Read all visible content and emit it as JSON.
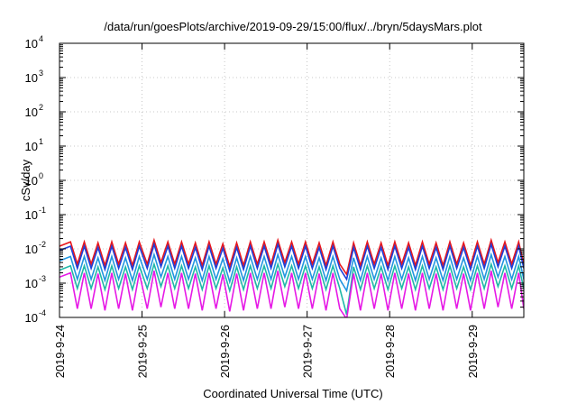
{
  "chart_data": {
    "type": "line",
    "title": "/data/run/goesPlots/archive/2019-09-29/15:00/flux/../bryn/5daysMars.plot",
    "xlabel": "Coordinated Universal Time (UTC)",
    "ylabel": "cSv/day",
    "yscale": "log",
    "ylim": [
      0.0001,
      10000
    ],
    "xlim": [
      "2019-09-24 00:00",
      "2019-09-29 15:00"
    ],
    "x_ticks": [
      "2019-9-24",
      "2019-9-25",
      "2019-9-26",
      "2019-9-27",
      "2019-9-28",
      "2019-9-29"
    ],
    "y_ticks": [
      {
        "value": 0.0001,
        "base": "10",
        "exp": "-4"
      },
      {
        "value": 0.001,
        "base": "10",
        "exp": "-3"
      },
      {
        "value": 0.01,
        "base": "10",
        "exp": "-2"
      },
      {
        "value": 0.1,
        "base": "10",
        "exp": "-1"
      },
      {
        "value": 1,
        "base": "10",
        "exp": "0"
      },
      {
        "value": 10,
        "base": "10",
        "exp": "1"
      },
      {
        "value": 100,
        "base": "10",
        "exp": "2"
      },
      {
        "value": 1000,
        "base": "10",
        "exp": "3"
      },
      {
        "value": 10000,
        "base": "10",
        "exp": "4"
      }
    ],
    "grid": true,
    "legend": "none",
    "time_hours": [
      0,
      3.2,
      5.2,
      7.2,
      9.2,
      11.2,
      13.2,
      15.2,
      17.2,
      19.2,
      21.2,
      23.2,
      25.5,
      27.5,
      29.5,
      31.5,
      33.5,
      35.5,
      37.5,
      39.5,
      41.5,
      43.5,
      45.5,
      47.5,
      49.5,
      51.5,
      53.5,
      55.5,
      57.5,
      59.5,
      61.5,
      63.5,
      65.5,
      67.5,
      69.5,
      71.5,
      73.5,
      75.5,
      77.5,
      79.5,
      81.5,
      83.5,
      85.5,
      87.5,
      89.5,
      91.5,
      93.5,
      95.5,
      97.5,
      99.5,
      101.5,
      103.5,
      105.5,
      107.5,
      109.5,
      111.5,
      113.5,
      115.5,
      117.5,
      119.5,
      121.5,
      123.5,
      125.5,
      127.5,
      129.5,
      131.5,
      133.5,
      135
    ],
    "series": [
      {
        "color": "#e8161c",
        "values": [
          0.012,
          0.016,
          0.0036,
          0.016,
          0.0036,
          0.015,
          0.0033,
          0.016,
          0.0036,
          0.015,
          0.0033,
          0.016,
          0.0036,
          0.018,
          0.004,
          0.016,
          0.0036,
          0.016,
          0.0036,
          0.015,
          0.0033,
          0.016,
          0.0036,
          0.014,
          0.0031,
          0.015,
          0.0033,
          0.016,
          0.0036,
          0.016,
          0.0036,
          0.018,
          0.004,
          0.016,
          0.0036,
          0.016,
          0.0036,
          0.015,
          0.0033,
          0.016,
          0.0036,
          0.0018,
          0.015,
          0.0033,
          0.016,
          0.0036,
          0.015,
          0.0033,
          0.016,
          0.0036,
          0.015,
          0.0033,
          0.016,
          0.0036,
          0.015,
          0.0033,
          0.016,
          0.0036,
          0.015,
          0.0033,
          0.016,
          0.0036,
          0.018,
          0.004,
          0.016,
          0.0036,
          0.016,
          0.0036
        ]
      },
      {
        "color": "#1f3fd9",
        "values": [
          0.009,
          0.012,
          0.0027,
          0.012,
          0.0027,
          0.011,
          0.0025,
          0.012,
          0.0027,
          0.011,
          0.0025,
          0.012,
          0.0027,
          0.0135,
          0.003,
          0.012,
          0.0027,
          0.012,
          0.0027,
          0.011,
          0.0025,
          0.012,
          0.0027,
          0.0105,
          0.0023,
          0.011,
          0.0025,
          0.012,
          0.0027,
          0.012,
          0.0027,
          0.0135,
          0.003,
          0.012,
          0.0027,
          0.012,
          0.0027,
          0.011,
          0.0025,
          0.012,
          0.0027,
          0.0013,
          0.011,
          0.0025,
          0.012,
          0.0027,
          0.011,
          0.0025,
          0.012,
          0.0027,
          0.011,
          0.0025,
          0.012,
          0.0027,
          0.011,
          0.0025,
          0.012,
          0.0027,
          0.011,
          0.0025,
          0.012,
          0.0027,
          0.0135,
          0.003,
          0.012,
          0.0027,
          0.012,
          0.0027
        ]
      },
      {
        "color": "#2196e0",
        "values": [
          0.0045,
          0.006,
          0.0013,
          0.006,
          0.0013,
          0.0055,
          0.0012,
          0.006,
          0.0013,
          0.0055,
          0.0012,
          0.006,
          0.0013,
          0.0068,
          0.0015,
          0.006,
          0.0013,
          0.006,
          0.0013,
          0.0055,
          0.0012,
          0.006,
          0.0013,
          0.0052,
          0.0011,
          0.0055,
          0.0012,
          0.006,
          0.0013,
          0.006,
          0.0013,
          0.0068,
          0.0015,
          0.006,
          0.0013,
          0.006,
          0.0013,
          0.0055,
          0.0012,
          0.006,
          0.0013,
          0.0006,
          0.0055,
          0.0012,
          0.006,
          0.0013,
          0.0055,
          0.0012,
          0.006,
          0.0013,
          0.0055,
          0.0012,
          0.006,
          0.0013,
          0.0055,
          0.0012,
          0.006,
          0.0013,
          0.0055,
          0.0012,
          0.006,
          0.0013,
          0.0068,
          0.0015,
          0.006,
          0.0013,
          0.006,
          0.0013
        ]
      },
      {
        "color": "#1fb8a8",
        "values": [
          0.0024,
          0.0032,
          0.0007,
          0.0032,
          0.0007,
          0.003,
          0.00065,
          0.0032,
          0.0007,
          0.003,
          0.00065,
          0.0032,
          0.0007,
          0.0036,
          0.0008,
          0.0032,
          0.0007,
          0.0032,
          0.0007,
          0.003,
          0.00065,
          0.0032,
          0.0007,
          0.0028,
          0.0006,
          0.003,
          0.00065,
          0.0032,
          0.0007,
          0.0032,
          0.0007,
          0.0036,
          0.0008,
          0.0032,
          0.0007,
          0.0032,
          0.0007,
          0.003,
          0.00065,
          0.0032,
          0.0007,
          0.00012,
          0.003,
          0.00065,
          0.0032,
          0.0007,
          0.003,
          0.00065,
          0.0032,
          0.0007,
          0.003,
          0.00065,
          0.0032,
          0.0007,
          0.003,
          0.00065,
          0.0032,
          0.0007,
          0.003,
          0.00065,
          0.0032,
          0.0007,
          0.0036,
          0.0008,
          0.0032,
          0.0007,
          0.0032,
          0.0007
        ]
      },
      {
        "color": "#e619e6",
        "values": [
          0.0015,
          0.002,
          0.00018,
          0.002,
          0.00018,
          0.0019,
          0.00016,
          0.002,
          0.00018,
          0.0019,
          0.00016,
          0.002,
          0.00018,
          0.0023,
          0.0002,
          0.002,
          0.00018,
          0.002,
          0.00018,
          0.0019,
          0.00016,
          0.002,
          0.00018,
          0.0018,
          0.00015,
          0.0019,
          0.00016,
          0.002,
          0.00018,
          0.002,
          0.00018,
          0.0023,
          0.0002,
          0.002,
          0.00018,
          0.002,
          0.00018,
          0.0019,
          0.00016,
          0.002,
          0.00018,
          9e-05,
          0.0019,
          0.00016,
          0.002,
          0.00018,
          0.0019,
          0.00016,
          0.002,
          0.00018,
          0.0019,
          0.00016,
          0.002,
          0.00018,
          0.0019,
          0.00016,
          0.002,
          0.00018,
          0.0019,
          0.00016,
          0.002,
          0.00018,
          0.0023,
          0.0002,
          0.002,
          0.00018,
          0.002,
          0.00018
        ]
      }
    ]
  }
}
